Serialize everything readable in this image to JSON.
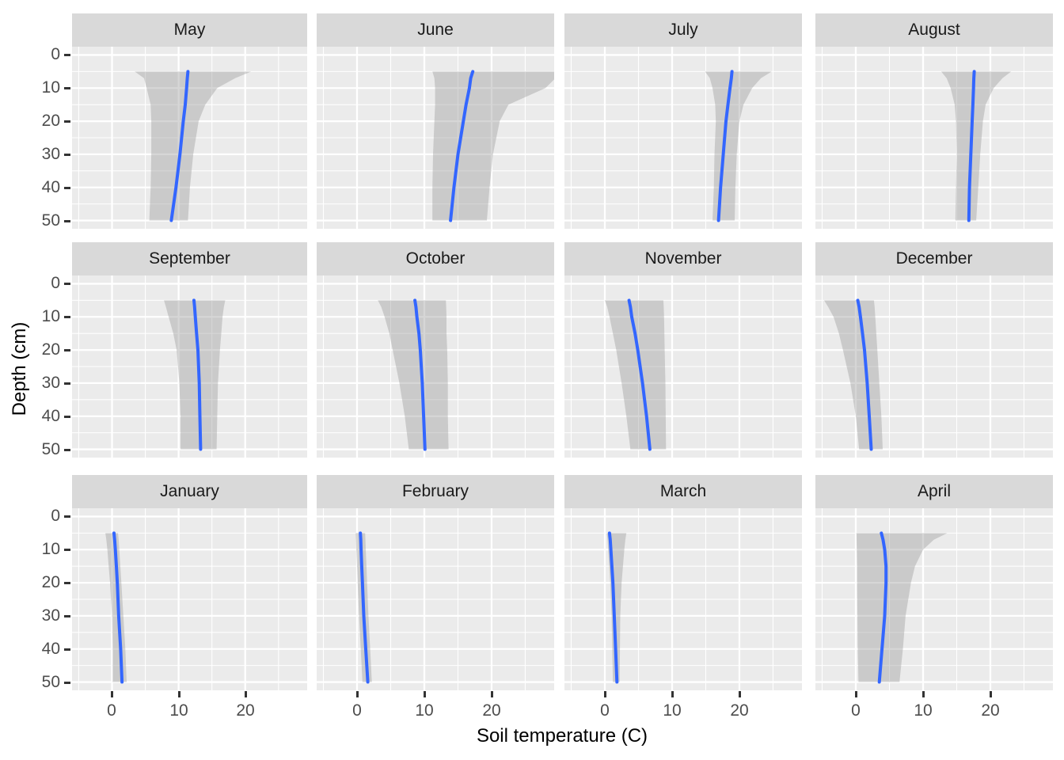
{
  "chart_data": {
    "type": "area",
    "title": "",
    "xlabel": "Soil temperature (C)",
    "ylabel": "Depth (cm)",
    "x_ticks": [
      0,
      10,
      20
    ],
    "y_ticks": [
      0,
      10,
      20,
      30,
      40,
      50
    ],
    "x_minor": [
      -5,
      5,
      15,
      25
    ],
    "y_minor": [
      5,
      15,
      25,
      35,
      45
    ],
    "xlim": [
      -6,
      29.3
    ],
    "ylim": [
      -2.5,
      52.5
    ],
    "y_inverted": true,
    "grid": true,
    "legend": "none",
    "facet_layout": {
      "ncol": 4,
      "nrow": 3
    },
    "depths": [
      5,
      7,
      10,
      15,
      20,
      30,
      40,
      50
    ],
    "facets": [
      {
        "label": "May",
        "mean": [
          11.4,
          11.3,
          11.2,
          11.0,
          10.7,
          10.2,
          9.6,
          8.9
        ],
        "lower": [
          3.4,
          4.8,
          5.2,
          5.8,
          5.9,
          5.9,
          5.8,
          5.6
        ],
        "upper": [
          20.9,
          18.5,
          15.8,
          14.0,
          13.0,
          12.2,
          11.7,
          11.4
        ]
      },
      {
        "label": "June",
        "mean": [
          17.2,
          16.9,
          16.7,
          16.2,
          15.8,
          15.0,
          14.4,
          13.9
        ],
        "lower": [
          11.2,
          11.5,
          11.6,
          11.6,
          11.5,
          11.3,
          11.2,
          11.2
        ],
        "upper": [
          29.5,
          29.5,
          28.0,
          22.5,
          21.2,
          20.2,
          19.7,
          19.3
        ]
      },
      {
        "label": "July",
        "mean": [
          18.9,
          18.8,
          18.6,
          18.3,
          18.0,
          17.6,
          17.2,
          16.9
        ],
        "lower": [
          14.9,
          15.6,
          16.0,
          16.4,
          16.5,
          16.3,
          16.2,
          16.0
        ],
        "upper": [
          24.8,
          23.2,
          21.9,
          20.6,
          20.0,
          19.6,
          19.4,
          19.3
        ]
      },
      {
        "label": "August",
        "mean": [
          17.6,
          17.55,
          17.5,
          17.4,
          17.3,
          17.1,
          16.9,
          16.8
        ],
        "lower": [
          12.7,
          13.5,
          14.1,
          14.7,
          14.9,
          15.0,
          14.9,
          14.8
        ],
        "upper": [
          23.1,
          21.8,
          20.5,
          19.3,
          18.9,
          18.5,
          18.2,
          17.9
        ]
      },
      {
        "label": "September",
        "mean": [
          12.3,
          12.4,
          12.5,
          12.7,
          12.9,
          13.1,
          13.2,
          13.3
        ],
        "lower": [
          7.8,
          8.1,
          8.5,
          9.2,
          9.7,
          10.1,
          10.3,
          10.3
        ],
        "upper": [
          17.0,
          16.8,
          16.6,
          16.4,
          16.2,
          15.9,
          15.8,
          15.7
        ]
      },
      {
        "label": "October",
        "mean": [
          8.6,
          8.75,
          8.9,
          9.2,
          9.4,
          9.7,
          9.9,
          10.1
        ],
        "lower": [
          3.1,
          3.6,
          4.1,
          4.8,
          5.3,
          6.3,
          7.1,
          7.7
        ],
        "upper": [
          13.2,
          13.25,
          13.3,
          13.3,
          13.4,
          13.5,
          13.5,
          13.6
        ]
      },
      {
        "label": "November",
        "mean": [
          3.6,
          3.8,
          4.0,
          4.5,
          4.9,
          5.6,
          6.2,
          6.7
        ],
        "lower": [
          0.0,
          0.35,
          0.7,
          1.2,
          1.7,
          2.5,
          3.2,
          3.8
        ],
        "upper": [
          8.7,
          8.75,
          8.8,
          8.85,
          8.9,
          9.0,
          9.05,
          9.1
        ]
      },
      {
        "label": "December",
        "mean": [
          0.3,
          0.5,
          0.7,
          1.0,
          1.3,
          1.7,
          2.0,
          2.3
        ],
        "lower": [
          -4.7,
          -4.1,
          -3.3,
          -2.5,
          -1.9,
          -0.8,
          0.0,
          0.5
        ],
        "upper": [
          2.7,
          2.8,
          2.9,
          3.05,
          3.2,
          3.5,
          3.8,
          4.0
        ]
      },
      {
        "label": "January",
        "mean": [
          0.3,
          0.4,
          0.5,
          0.65,
          0.8,
          1.0,
          1.3,
          1.5
        ],
        "lower": [
          -1.0,
          -0.85,
          -0.7,
          -0.5,
          -0.3,
          0.0,
          0.1,
          0.1
        ],
        "upper": [
          0.9,
          1.0,
          1.1,
          1.25,
          1.4,
          1.7,
          2.0,
          2.2
        ]
      },
      {
        "label": "February",
        "mean": [
          0.5,
          0.55,
          0.6,
          0.7,
          0.8,
          1.0,
          1.3,
          1.6
        ],
        "lower": [
          -0.2,
          -0.15,
          -0.1,
          0.0,
          0.1,
          0.3,
          0.55,
          0.8
        ],
        "upper": [
          1.2,
          1.25,
          1.3,
          1.4,
          1.5,
          1.7,
          1.95,
          2.2
        ]
      },
      {
        "label": "March",
        "mean": [
          0.7,
          0.8,
          0.9,
          1.05,
          1.2,
          1.4,
          1.6,
          1.8
        ],
        "lower": [
          0.3,
          0.4,
          0.5,
          0.65,
          0.8,
          1.0,
          1.1,
          1.2
        ],
        "upper": [
          3.2,
          3.05,
          2.9,
          2.7,
          2.5,
          2.3,
          2.25,
          2.2
        ]
      },
      {
        "label": "April",
        "mean": [
          3.8,
          4.05,
          4.3,
          4.5,
          4.5,
          4.3,
          3.9,
          3.5
        ],
        "lower": [
          0.1,
          0.12,
          0.15,
          0.2,
          0.2,
          0.25,
          0.3,
          0.4
        ],
        "upper": [
          13.6,
          11.6,
          10.0,
          8.8,
          8.2,
          7.4,
          7.0,
          6.5
        ]
      }
    ],
    "colors": {
      "line": "#3366FF",
      "ribbon": "#999999",
      "ribbon_opacity": 0.4,
      "panel_bg": "#EBEBEB",
      "strip_bg": "#D9D9D9",
      "grid": "#FFFFFF",
      "tick_text": "#4D4D4D",
      "strip_text": "#1A1A1A",
      "axis_title_text": "#000000",
      "tick_mark": "#333333"
    }
  }
}
